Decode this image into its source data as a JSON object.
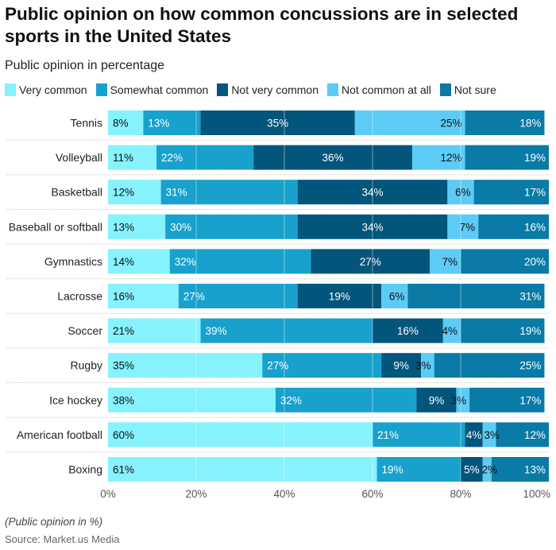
{
  "chart_data": {
    "type": "bar",
    "orientation": "horizontal",
    "stacked": true,
    "title": "Public opinion on how common concussions are in selected sports in the United States",
    "subtitle": "Public opinion in percentage",
    "categories": [
      "Tennis",
      "Volleyball",
      "Basketball",
      "Baseball or softball",
      "Gymnastics",
      "Lacrosse",
      "Soccer",
      "Rugby",
      "Ice hockey",
      "American football",
      "Boxing"
    ],
    "series": [
      {
        "name": "Very common",
        "color": "#86f2fd",
        "values": [
          8,
          11,
          12,
          13,
          14,
          16,
          21,
          35,
          38,
          60,
          61
        ]
      },
      {
        "name": "Somewhat common",
        "color": "#18a1cd",
        "values": [
          13,
          22,
          31,
          30,
          32,
          27,
          39,
          27,
          32,
          21,
          19
        ]
      },
      {
        "name": "Not very common",
        "color": "#02557b",
        "values": [
          35,
          36,
          34,
          34,
          27,
          19,
          16,
          9,
          9,
          4,
          5
        ]
      },
      {
        "name": "Not common at all",
        "color": "#5ccbf6",
        "values": [
          25,
          12,
          6,
          7,
          7,
          6,
          4,
          3,
          3,
          3,
          2
        ]
      },
      {
        "name": "Not sure",
        "color": "#0a7aa6",
        "values": [
          18,
          19,
          17,
          16,
          20,
          31,
          19,
          25,
          17,
          12,
          13
        ]
      }
    ],
    "xlim": [
      0,
      100
    ],
    "xticks": [
      "0%",
      "20%",
      "40%",
      "60%",
      "80%",
      "100%"
    ],
    "legend_position": "top-left",
    "grid": true
  },
  "footnote": "(Public opinion in %)",
  "source": "Source: Market.us Media"
}
